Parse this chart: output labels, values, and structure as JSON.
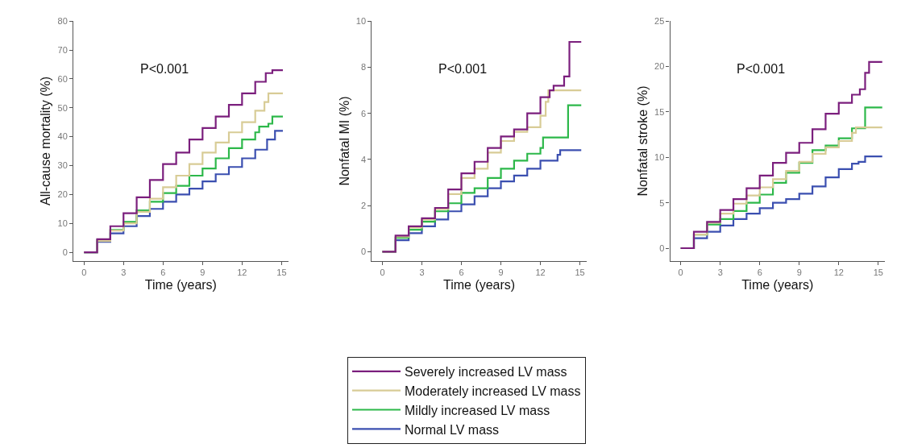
{
  "chart_data": [
    {
      "type": "step",
      "xlabel": "Time (years)",
      "ylabel": "All-cause mortality (%)",
      "annotations": [
        "P<0.001"
      ],
      "xlim": [
        -0.8,
        15.5
      ],
      "xticks": [
        0,
        3,
        6,
        9,
        12,
        15
      ],
      "ylim": [
        -3,
        80
      ],
      "yticks": [
        0,
        10,
        20,
        30,
        40,
        50,
        60,
        70,
        80
      ],
      "legend": "bottom",
      "series": [
        {
          "name": "Severely increased LV mass",
          "color": "#7b1f7d",
          "x": [
            0,
            1,
            2,
            3,
            4,
            5,
            6,
            7,
            8,
            9,
            10,
            11,
            12,
            13,
            13.8,
            14.3,
            15.1
          ],
          "values": [
            0,
            4.5,
            9,
            13.5,
            19,
            25,
            30.5,
            34.5,
            39,
            43,
            47,
            51,
            55,
            59,
            62,
            63,
            63
          ]
        },
        {
          "name": "Moderately increased LV mass",
          "color": "#d8cc96",
          "x": [
            0,
            1,
            2,
            3,
            4,
            5,
            6,
            7,
            8,
            9,
            10,
            11,
            12,
            13,
            13.7,
            14,
            15.1
          ],
          "values": [
            0,
            3.9,
            7.5,
            10,
            14,
            18.5,
            22.5,
            26.5,
            30.5,
            34.5,
            38,
            41.5,
            45,
            49,
            52,
            55,
            55
          ]
        },
        {
          "name": "Mildly increased LV mass",
          "color": "#2db84a",
          "x": [
            0,
            1,
            2,
            3,
            4,
            5,
            6,
            7,
            8,
            9,
            10,
            11,
            12,
            13,
            13.3,
            14,
            14.3,
            15.1
          ],
          "values": [
            0,
            4.2,
            7.7,
            10.5,
            14.5,
            17.5,
            20.5,
            23,
            26.5,
            29,
            32.5,
            36,
            39,
            41.5,
            43.5,
            44.5,
            47,
            47
          ]
        },
        {
          "name": "Normal LV mass",
          "color": "#3b4fb0",
          "x": [
            0,
            1,
            2,
            3,
            4,
            5,
            6,
            7,
            8,
            9,
            10,
            11,
            12,
            13,
            13.9,
            14.5,
            15.1
          ],
          "values": [
            0,
            3.6,
            6.5,
            9,
            12.5,
            15,
            17.5,
            20,
            22,
            24.5,
            27,
            29.5,
            32.5,
            35.5,
            39,
            42,
            42
          ]
        }
      ]
    },
    {
      "type": "step",
      "xlabel": "Time (years)",
      "ylabel": "Nonfatal MI (%)",
      "annotations": [
        "P<0.001"
      ],
      "xlim": [
        -0.8,
        15.5
      ],
      "xticks": [
        0,
        3,
        6,
        9,
        12,
        15
      ],
      "ylim": [
        -0.4,
        10
      ],
      "yticks": [
        0,
        2,
        4,
        6,
        8,
        10
      ],
      "series": [
        {
          "color": "#7b1f7d",
          "x": [
            0,
            1,
            2,
            3,
            4,
            5,
            6,
            7,
            8,
            9,
            10,
            11,
            12,
            12.7,
            13,
            13.8,
            14.2,
            15.1
          ],
          "values": [
            0,
            0.7,
            1.1,
            1.45,
            1.9,
            2.7,
            3.4,
            3.9,
            4.5,
            5.0,
            5.3,
            6.0,
            6.7,
            7.0,
            7.2,
            7.6,
            9.1,
            9.1
          ]
        },
        {
          "color": "#d8cc96",
          "x": [
            0,
            1,
            2,
            3,
            4,
            5,
            6,
            7,
            8,
            9,
            10,
            11,
            12,
            12.4,
            12.6,
            15.1
          ],
          "values": [
            0,
            0.65,
            1.05,
            1.4,
            1.85,
            2.5,
            3.2,
            3.6,
            4.3,
            4.8,
            5.2,
            5.4,
            5.9,
            6.5,
            7.0,
            7.0
          ]
        },
        {
          "color": "#2db84a",
          "x": [
            0,
            1,
            2,
            3,
            4,
            5,
            6,
            7,
            8,
            9,
            10,
            11,
            12,
            12.2,
            14.1,
            15.1
          ],
          "values": [
            0,
            0.6,
            0.95,
            1.3,
            1.75,
            2.1,
            2.55,
            2.75,
            3.2,
            3.6,
            3.95,
            4.25,
            4.5,
            4.95,
            6.35,
            6.35
          ]
        },
        {
          "color": "#3b4fb0",
          "x": [
            0,
            1,
            2,
            3,
            4,
            5,
            6,
            7,
            8,
            9,
            10,
            11,
            12,
            13.3,
            13.5,
            15.1
          ],
          "values": [
            0,
            0.5,
            0.8,
            1.1,
            1.4,
            1.75,
            2.05,
            2.4,
            2.75,
            3.05,
            3.3,
            3.6,
            3.95,
            4.2,
            4.4,
            4.4
          ]
        }
      ]
    },
    {
      "type": "step",
      "xlabel": "Time (years)",
      "ylabel": "Nonfatal stroke (%)",
      "annotations": [
        "P<0.001"
      ],
      "xlim": [
        -0.8,
        15.5
      ],
      "xticks": [
        0,
        3,
        6,
        9,
        12,
        15
      ],
      "ylim": [
        -1.4,
        25
      ],
      "yticks": [
        0,
        5,
        10,
        15,
        20,
        25
      ],
      "series": [
        {
          "color": "#7b1f7d",
          "x": [
            0,
            1,
            2,
            3,
            4,
            5,
            6,
            7,
            8,
            9,
            10,
            11,
            12,
            13,
            13.6,
            14,
            14.3,
            15.3
          ],
          "values": [
            0,
            1.8,
            2.9,
            4.2,
            5.4,
            6.6,
            8,
            9.4,
            10.5,
            11.6,
            13.1,
            14.8,
            16,
            16.9,
            17.5,
            19.3,
            20.5,
            20.5
          ]
        },
        {
          "color": "#d8cc96",
          "x": [
            0,
            1,
            2,
            3,
            4,
            5,
            6,
            7,
            8,
            9,
            10,
            11,
            12,
            13,
            13.3,
            15.3
          ],
          "values": [
            0,
            1.5,
            2.8,
            3.8,
            4.9,
            5.8,
            6.7,
            7.6,
            8.5,
            9.5,
            10.4,
            11.1,
            11.8,
            12.7,
            13.3,
            13.3
          ]
        },
        {
          "color": "#2db84a",
          "x": [
            0,
            1,
            2,
            3,
            4,
            5,
            6,
            7,
            8,
            9,
            10,
            11,
            12,
            13,
            14,
            15.3
          ],
          "values": [
            0,
            1.5,
            2.6,
            3.2,
            4.1,
            5.0,
            5.9,
            7.2,
            8.3,
            9.4,
            10.8,
            11.3,
            12.1,
            13.2,
            15.5,
            15.5
          ]
        },
        {
          "color": "#3b4fb0",
          "x": [
            0,
            1,
            2,
            3,
            4,
            5,
            6,
            7,
            8,
            9,
            10,
            11,
            12,
            13,
            13.5,
            14,
            15.3
          ],
          "values": [
            0,
            1.1,
            1.8,
            2.5,
            3.2,
            3.8,
            4.4,
            5,
            5.4,
            6,
            6.8,
            7.8,
            8.7,
            9.3,
            9.5,
            10.1,
            10.1
          ]
        }
      ]
    }
  ]
}
